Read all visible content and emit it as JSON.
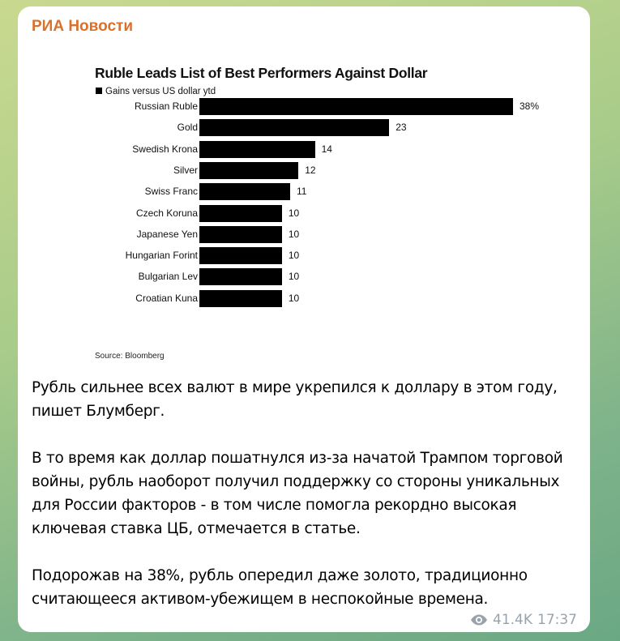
{
  "post": {
    "author": "РИА Новости",
    "paragraphs": [
      "Рубль сильнее всех валют в мире укрепился к доллару в этом году, пишет Блумберг.",
      "В то время как доллар пошатнулся из-за начатой Трампом торговой войны, рубль наоборот получил поддержку со стороны уникальных для России факторов - в том числе помогла рекордно высокая ключевая ставка ЦБ, отмечается в статье.",
      "Подорожав на 38%, рубль опередил даже золото, традиционно считающееся активом-убежищем в неспокойные времена."
    ],
    "views": "41.4K",
    "time": "17:37",
    "views_icon": "eye-icon"
  },
  "colors": {
    "author": "#d9702c",
    "bar": "#000000",
    "meta": "#9aa3ab"
  },
  "chart_data": {
    "type": "bar",
    "orientation": "horizontal",
    "title": "Ruble Leads List of Best Performers Against Dollar",
    "legend": "Gains versus US dollar ytd",
    "source": "Source: Bloomberg",
    "categories": [
      "Russian Ruble",
      "Gold",
      "Swedish Krona",
      "Silver",
      "Swiss Franc",
      "Czech Koruna",
      "Japanese Yen",
      "Hungarian Forint",
      "Bulgarian Lev",
      "Croatian Kuna"
    ],
    "values": [
      38,
      23,
      14,
      12,
      11,
      10,
      10,
      10,
      10,
      10
    ],
    "labels": [
      "38%",
      "23",
      "14",
      "12",
      "11",
      "10",
      "10",
      "10",
      "10",
      "10"
    ],
    "xlim": [
      0,
      38
    ]
  }
}
